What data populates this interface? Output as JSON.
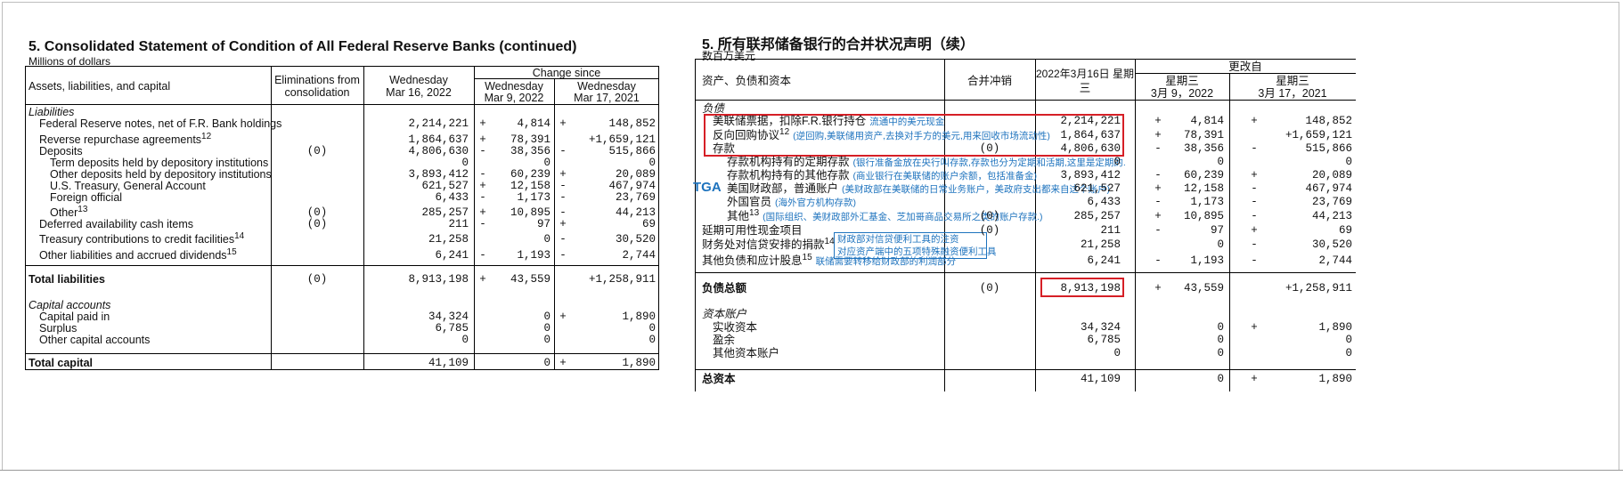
{
  "english": {
    "title": "5. Consolidated Statement of Condition of All Federal Reserve Banks (continued)",
    "subtitle": "Millions of dollars",
    "headers": {
      "item": "Assets, liabilities, and capital",
      "elim": [
        "Eliminations from",
        "consolidation"
      ],
      "wed": [
        "Wednesday",
        "Mar 16, 2022"
      ],
      "change": "Change since",
      "c1": [
        "Wednesday",
        "Mar 9, 2022"
      ],
      "c2": [
        "Wednesday",
        "Mar 17, 2021"
      ]
    },
    "rows": [
      {
        "label": "Liabilities",
        "style": "section"
      },
      {
        "label": "Federal Reserve notes, net of F.R. Bank holdings",
        "v": "2,214,221",
        "s1": "+",
        "d1": "4,814",
        "s2": "+",
        "d2": "148,852"
      },
      {
        "label": "Reverse repurchase agreements",
        "sup": "12",
        "v": "1,864,637",
        "s1": "+",
        "d1": "78,391",
        "s2": "",
        "d2": "+1,659,121"
      },
      {
        "label": "Deposits",
        "e": "(0)",
        "v": "4,806,630",
        "s1": "-",
        "d1": "38,356",
        "s2": "-",
        "d2": "515,866"
      },
      {
        "label": "Term deposits held by depository institutions",
        "v": "0",
        "d1": "0",
        "d2": "0"
      },
      {
        "label": "Other deposits held by depository institutions",
        "v": "3,893,412",
        "s1": "-",
        "d1": "60,239",
        "s2": "+",
        "d2": "20,089"
      },
      {
        "label": "U.S. Treasury, General Account",
        "v": "621,527",
        "s1": "+",
        "d1": "12,158",
        "s2": "-",
        "d2": "467,974"
      },
      {
        "label": "Foreign official",
        "v": "6,433",
        "s1": "-",
        "d1": "1,173",
        "s2": "-",
        "d2": "23,769"
      },
      {
        "label": "Other",
        "sup": "13",
        "e": "(0)",
        "v": "285,257",
        "s1": "+",
        "d1": "10,895",
        "s2": "-",
        "d2": "44,213"
      },
      {
        "label": "Deferred availability cash items",
        "e": "(0)",
        "v": "211",
        "s1": "-",
        "d1": "97",
        "s2": "+",
        "d2": "69"
      },
      {
        "label": "Treasury contributions to credit facilities",
        "sup": "14",
        "v": "21,258",
        "d1": "0",
        "s2": "-",
        "d2": "30,520"
      },
      {
        "label": "Other liabilities and accrued dividends",
        "sup": "15",
        "v": "6,241",
        "s1": "-",
        "d1": "1,193",
        "s2": "-",
        "d2": "2,744"
      },
      {
        "label": "Total liabilities",
        "style": "total",
        "e": "(0)",
        "v": "8,913,198",
        "s1": "+",
        "d1": "43,559",
        "s2": "",
        "d2": "+1,258,911"
      },
      {
        "label": "Capital accounts",
        "style": "section"
      },
      {
        "label": "Capital paid in",
        "v": "34,324",
        "d1": "0",
        "s2": "+",
        "d2": "1,890"
      },
      {
        "label": "Surplus",
        "v": "6,785",
        "d1": "0",
        "d2": "0"
      },
      {
        "label": "Other capital accounts",
        "v": "0",
        "d1": "0",
        "d2": "0"
      },
      {
        "label": "Total capital",
        "style": "total",
        "v": "41,109",
        "d1": "0",
        "s2": "+",
        "d2": "1,890"
      }
    ]
  },
  "chinese": {
    "title": "5. 所有联邦储备银行的合并状况声明（续）",
    "subtitle": "数百万美元",
    "headers": {
      "item": "资产、负债和资本",
      "elim": "合并冲销",
      "wed": [
        "2022年3月16日 星期",
        "三"
      ],
      "change": "更改自",
      "c1": [
        "星期三",
        "3月 9，2022"
      ],
      "c2": [
        "星期三",
        "3月 17，2021"
      ]
    },
    "rows": [
      {
        "label": "负债",
        "style": "section"
      },
      {
        "label": "美联储票据，扣除F.R.银行持仓",
        "ann": "流通中的美元现金",
        "v": "2,214,221",
        "s1": "+",
        "d1": "4,814",
        "s2": "+",
        "d2": "148,852"
      },
      {
        "label": "反向回购协议",
        "sup": "12",
        "ann": "(逆回购,美联储用资产,去换对手方的美元,用来回收市场流动性)",
        "v": "1,864,637",
        "s1": "+",
        "d1": "78,391",
        "s2": "",
        "d2": "+1,659,121"
      },
      {
        "label": "存款",
        "e": "(0)",
        "v": "4,806,630",
        "s1": "-",
        "d1": "38,356",
        "s2": "-",
        "d2": "515,866"
      },
      {
        "label": "存款机构持有的定期存款",
        "ann": "(银行准备金放在央行叫存款,存款也分为定期和活期,这里是定期的.",
        "v": "0",
        "d1": "0",
        "d2": "0"
      },
      {
        "label": "存款机构持有的其他存款",
        "ann": "(商业银行在美联储的账户余额，包括准备金)",
        "v": "3,893,412",
        "s1": "-",
        "d1": "60,239",
        "s2": "+",
        "d2": "20,089"
      },
      {
        "label": "美国财政部，普通账户",
        "ann": "(美财政部在美联储的日常业务账户，美政府支出都来自这个账户)",
        "v": "621,527",
        "s1": "+",
        "d1": "12,158",
        "s2": "-",
        "d2": "467,974"
      },
      {
        "label": "外国官员",
        "ann": "(海外官方机构存款)",
        "v": "6,433",
        "s1": "-",
        "d1": "1,173",
        "s2": "-",
        "d2": "23,769"
      },
      {
        "label": "其他",
        "sup": "13",
        "ann": "(国际组织、美财政部外汇基金、芝加哥商品交易所之类的账户存款.)",
        "e": "(0)",
        "v": "285,257",
        "s1": "+",
        "d1": "10,895",
        "s2": "-",
        "d2": "44,213"
      },
      {
        "label": "延期可用性现金项目",
        "e": "(0)",
        "v": "211",
        "s1": "-",
        "d1": "97",
        "s2": "+",
        "d2": "69"
      },
      {
        "label": "财务处对信贷安排的捐款",
        "sup": "14",
        "v": "21,258",
        "d1": "0",
        "s2": "-",
        "d2": "30,520"
      },
      {
        "label": "其他负债和应计股息",
        "sup": "15",
        "ann": "联储需要转移给财政部的利润部分",
        "v": "6,241",
        "s1": "-",
        "d1": "1,193",
        "s2": "-",
        "d2": "2,744"
      },
      {
        "label": "负债总额",
        "style": "total",
        "e": "(0)",
        "v": "8,913,198",
        "s1": "+",
        "d1": "43,559",
        "s2": "",
        "d2": "+1,258,911"
      },
      {
        "label": "资本账户",
        "style": "section"
      },
      {
        "label": "实收资本",
        "v": "34,324",
        "d1": "0",
        "s2": "+",
        "d2": "1,890"
      },
      {
        "label": "盈余",
        "v": "6,785",
        "d1": "0",
        "d2": "0"
      },
      {
        "label": "其他资本账户",
        "v": "0",
        "d1": "0",
        "d2": "0"
      },
      {
        "label": "总资本",
        "style": "total",
        "v": "41,109",
        "d1": "0",
        "s2": "+",
        "d2": "1,890"
      }
    ],
    "tga_label": "TGA",
    "treasury_note": [
      "财政部对信贷便利工具的注资",
      "对应资产端中的五项特殊融资便利工具"
    ]
  },
  "colors": {
    "highlight_red": "#d61f26",
    "annotation_blue": "#1e73be"
  }
}
